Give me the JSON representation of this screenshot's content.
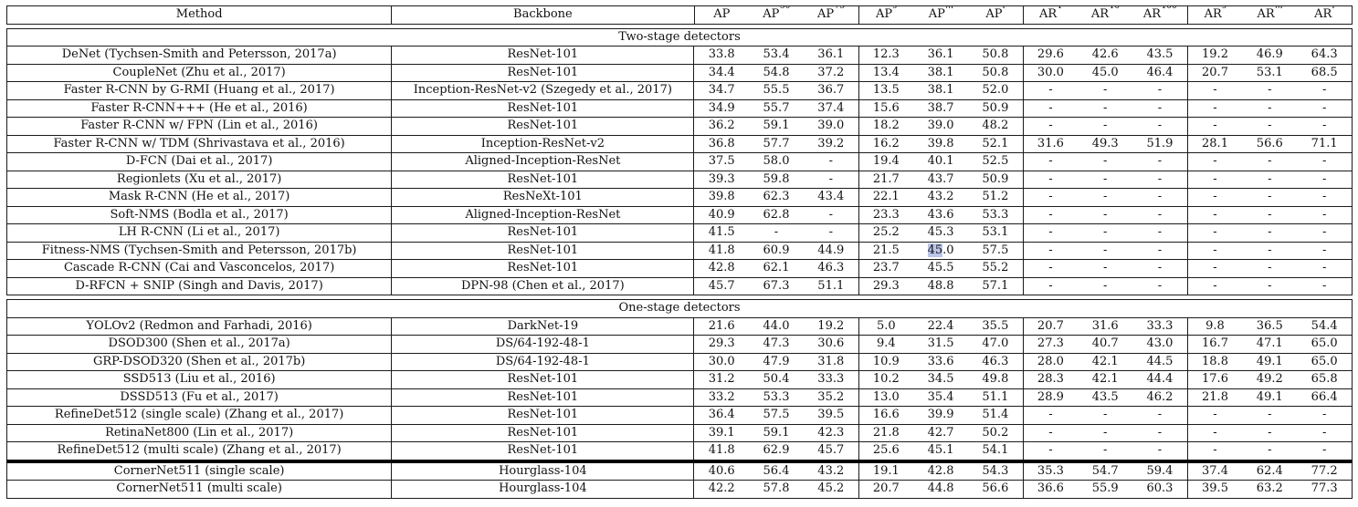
{
  "colors": {
    "selection_highlight": "#bcc5ea",
    "border": "#1b1b1b",
    "background": "#ffffff"
  },
  "table": {
    "header": {
      "method_label": "Method",
      "backbone_label": "Backbone",
      "metric_columns": [
        {
          "base": "AP",
          "sup": ""
        },
        {
          "base": "AP",
          "sup": "50"
        },
        {
          "base": "AP",
          "sup": "75"
        },
        {
          "base": "AP",
          "sup": "s"
        },
        {
          "base": "AP",
          "sup": "m"
        },
        {
          "base": "AP",
          "sup": "l"
        },
        {
          "base": "AR",
          "sup": "1"
        },
        {
          "base": "AR",
          "sup": "10"
        },
        {
          "base": "AR",
          "sup": "100"
        },
        {
          "base": "AR",
          "sup": "s"
        },
        {
          "base": "AR",
          "sup": "m"
        },
        {
          "base": "AR",
          "sup": "l"
        }
      ]
    },
    "sections": [
      {
        "label": "Two-stage detectors",
        "rows": [
          {
            "method": "DeNet (Tychsen-Smith and Petersson, 2017a)",
            "backbone": "ResNet-101",
            "values": [
              "33.8",
              "53.4",
              "36.1",
              "12.3",
              "36.1",
              "50.8",
              "29.6",
              "42.6",
              "43.5",
              "19.2",
              "46.9",
              "64.3"
            ]
          },
          {
            "method": "CoupleNet (Zhu et al., 2017)",
            "backbone": "ResNet-101",
            "values": [
              "34.4",
              "54.8",
              "37.2",
              "13.4",
              "38.1",
              "50.8",
              "30.0",
              "45.0",
              "46.4",
              "20.7",
              "53.1",
              "68.5"
            ]
          },
          {
            "method": "Faster R-CNN by G-RMI (Huang et al., 2017)",
            "backbone": "Inception-ResNet-v2 (Szegedy et al., 2017)",
            "values": [
              "34.7",
              "55.5",
              "36.7",
              "13.5",
              "38.1",
              "52.0",
              "-",
              "-",
              "-",
              "-",
              "-",
              "-"
            ]
          },
          {
            "method": "Faster R-CNN+++ (He et al., 2016)",
            "backbone": "ResNet-101",
            "values": [
              "34.9",
              "55.7",
              "37.4",
              "15.6",
              "38.7",
              "50.9",
              "-",
              "-",
              "-",
              "-",
              "-",
              "-"
            ]
          },
          {
            "method": "Faster R-CNN w/ FPN (Lin et al., 2016)",
            "backbone": "ResNet-101",
            "values": [
              "36.2",
              "59.1",
              "39.0",
              "18.2",
              "39.0",
              "48.2",
              "-",
              "-",
              "-",
              "-",
              "-",
              "-"
            ]
          },
          {
            "method": "Faster R-CNN w/ TDM (Shrivastava et al., 2016)",
            "backbone": "Inception-ResNet-v2",
            "values": [
              "36.8",
              "57.7",
              "39.2",
              "16.2",
              "39.8",
              "52.1",
              "31.6",
              "49.3",
              "51.9",
              "28.1",
              "56.6",
              "71.1"
            ]
          },
          {
            "method": "D-FCN (Dai et al., 2017)",
            "backbone": "Aligned-Inception-ResNet",
            "values": [
              "37.5",
              "58.0",
              "-",
              "19.4",
              "40.1",
              "52.5",
              "-",
              "-",
              "-",
              "-",
              "-",
              "-"
            ]
          },
          {
            "method": "Regionlets (Xu et al., 2017)",
            "backbone": "ResNet-101",
            "values": [
              "39.3",
              "59.8",
              "-",
              "21.7",
              "43.7",
              "50.9",
              "-",
              "-",
              "-",
              "-",
              "-",
              "-"
            ]
          },
          {
            "method": "Mask R-CNN (He et al., 2017)",
            "backbone": "ResNeXt-101",
            "values": [
              "39.8",
              "62.3",
              "43.4",
              "22.1",
              "43.2",
              "51.2",
              "-",
              "-",
              "-",
              "-",
              "-",
              "-"
            ]
          },
          {
            "method": "Soft-NMS (Bodla et al., 2017)",
            "backbone": "Aligned-Inception-ResNet",
            "values": [
              "40.9",
              "62.8",
              "-",
              "23.3",
              "43.6",
              "53.3",
              "-",
              "-",
              "-",
              "-",
              "-",
              "-"
            ]
          },
          {
            "method": "LH R-CNN (Li et al., 2017)",
            "backbone": "ResNet-101",
            "values": [
              "41.5",
              "-",
              "-",
              "25.2",
              "45.3",
              "53.1",
              "-",
              "-",
              "-",
              "-",
              "-",
              "-"
            ]
          },
          {
            "method": "Fitness-NMS (Tychsen-Smith and Petersson, 2017b)",
            "backbone": "ResNet-101",
            "values": [
              "41.8",
              "60.9",
              "44.9",
              "21.5",
              "45.0",
              "57.5",
              "-",
              "-",
              "-",
              "-",
              "-",
              "-"
            ],
            "selection": {
              "value_index": 4,
              "selected_text": "45"
            }
          },
          {
            "method": "Cascade R-CNN (Cai and Vasconcelos, 2017)",
            "backbone": "ResNet-101",
            "values": [
              "42.8",
              "62.1",
              "46.3",
              "23.7",
              "45.5",
              "55.2",
              "-",
              "-",
              "-",
              "-",
              "-",
              "-"
            ]
          },
          {
            "method": "D-RFCN + SNIP (Singh and Davis, 2017)",
            "backbone": "DPN-98 (Chen et al., 2017)",
            "values": [
              "45.7",
              "67.3",
              "51.1",
              "29.3",
              "48.8",
              "57.1",
              "-",
              "-",
              "-",
              "-",
              "-",
              "-"
            ]
          }
        ]
      },
      {
        "label": "One-stage detectors",
        "rows": [
          {
            "method": "YOLOv2 (Redmon and Farhadi, 2016)",
            "backbone": "DarkNet-19",
            "values": [
              "21.6",
              "44.0",
              "19.2",
              "5.0",
              "22.4",
              "35.5",
              "20.7",
              "31.6",
              "33.3",
              "9.8",
              "36.5",
              "54.4"
            ]
          },
          {
            "method": "DSOD300 (Shen et al., 2017a)",
            "backbone": "DS/64-192-48-1",
            "values": [
              "29.3",
              "47.3",
              "30.6",
              "9.4",
              "31.5",
              "47.0",
              "27.3",
              "40.7",
              "43.0",
              "16.7",
              "47.1",
              "65.0"
            ]
          },
          {
            "method": "GRP-DSOD320 (Shen et al., 2017b)",
            "backbone": "DS/64-192-48-1",
            "values": [
              "30.0",
              "47.9",
              "31.8",
              "10.9",
              "33.6",
              "46.3",
              "28.0",
              "42.1",
              "44.5",
              "18.8",
              "49.1",
              "65.0"
            ]
          },
          {
            "method": "SSD513 (Liu et al., 2016)",
            "backbone": "ResNet-101",
            "values": [
              "31.2",
              "50.4",
              "33.3",
              "10.2",
              "34.5",
              "49.8",
              "28.3",
              "42.1",
              "44.4",
              "17.6",
              "49.2",
              "65.8"
            ]
          },
          {
            "method": "DSSD513 (Fu et al., 2017)",
            "backbone": "ResNet-101",
            "values": [
              "33.2",
              "53.3",
              "35.2",
              "13.0",
              "35.4",
              "51.1",
              "28.9",
              "43.5",
              "46.2",
              "21.8",
              "49.1",
              "66.4"
            ]
          },
          {
            "method": "RefineDet512 (single scale) (Zhang et al., 2017)",
            "backbone": "ResNet-101",
            "values": [
              "36.4",
              "57.5",
              "39.5",
              "16.6",
              "39.9",
              "51.4",
              "-",
              "-",
              "-",
              "-",
              "-",
              "-"
            ]
          },
          {
            "method": "RetinaNet800 (Lin et al., 2017)",
            "backbone": "ResNet-101",
            "values": [
              "39.1",
              "59.1",
              "42.3",
              "21.8",
              "42.7",
              "50.2",
              "-",
              "-",
              "-",
              "-",
              "-",
              "-"
            ]
          },
          {
            "method": "RefineDet512 (multi scale) (Zhang et al., 2017)",
            "backbone": "ResNet-101",
            "values": [
              "41.8",
              "62.9",
              "45.7",
              "25.6",
              "45.1",
              "54.1",
              "-",
              "-",
              "-",
              "-",
              "-",
              "-"
            ]
          },
          {
            "method": "CornerNet511 (single scale)",
            "backbone": "Hourglass-104",
            "values": [
              "40.6",
              "56.4",
              "43.2",
              "19.1",
              "42.8",
              "54.3",
              "35.3",
              "54.7",
              "59.4",
              "37.4",
              "62.4",
              "77.2"
            ],
            "thick_rule_before": true
          },
          {
            "method": "CornerNet511 (multi scale)",
            "backbone": "Hourglass-104",
            "values": [
              "42.2",
              "57.8",
              "45.2",
              "20.7",
              "44.8",
              "56.6",
              "36.6",
              "55.9",
              "60.3",
              "39.5",
              "63.2",
              "77.3"
            ]
          }
        ]
      }
    ]
  }
}
